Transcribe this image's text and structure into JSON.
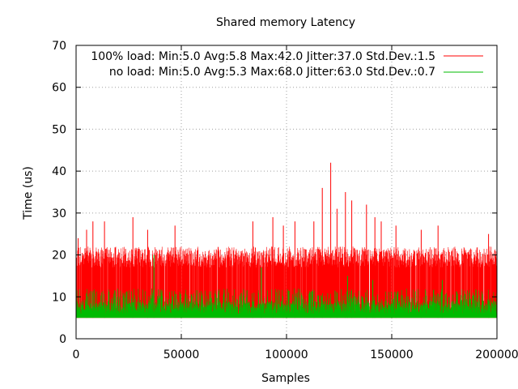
{
  "chart_data": {
    "type": "line",
    "title": "Shared memory Latency",
    "xlabel": "Samples",
    "ylabel": "Time (us)",
    "xlim": [
      0,
      200000
    ],
    "ylim": [
      0,
      70
    ],
    "x_ticks": [
      0,
      50000,
      100000,
      150000,
      200000
    ],
    "y_ticks": [
      0,
      10,
      20,
      30,
      40,
      50,
      60,
      70
    ],
    "grid": true,
    "legend_position": "top-right",
    "series": [
      {
        "name": "100% load: Min:5.0 Avg:5.8 Max:42.0 Jitter:37.0 Std.Dev.:1.5",
        "color": "#ff0000",
        "min": 5.0,
        "avg": 5.8,
        "max": 42.0,
        "typical_high": 22,
        "spikes": [
          {
            "x": 1000,
            "y": 24
          },
          {
            "x": 5000,
            "y": 26
          },
          {
            "x": 8000,
            "y": 28
          },
          {
            "x": 13500,
            "y": 28
          },
          {
            "x": 27000,
            "y": 29
          },
          {
            "x": 34000,
            "y": 26
          },
          {
            "x": 47000,
            "y": 27
          },
          {
            "x": 84000,
            "y": 28
          },
          {
            "x": 93500,
            "y": 29
          },
          {
            "x": 98500,
            "y": 27
          },
          {
            "x": 104000,
            "y": 28
          },
          {
            "x": 113000,
            "y": 28
          },
          {
            "x": 117000,
            "y": 36
          },
          {
            "x": 121000,
            "y": 42
          },
          {
            "x": 124000,
            "y": 31
          },
          {
            "x": 128000,
            "y": 35
          },
          {
            "x": 131000,
            "y": 33
          },
          {
            "x": 138000,
            "y": 32
          },
          {
            "x": 142000,
            "y": 29
          },
          {
            "x": 145000,
            "y": 28
          },
          {
            "x": 152000,
            "y": 27
          },
          {
            "x": 164000,
            "y": 26
          },
          {
            "x": 172000,
            "y": 27
          },
          {
            "x": 196000,
            "y": 25
          }
        ]
      },
      {
        "name": "no load: Min:5.0 Avg:5.3 Max:68.0 Jitter:63.0 Std.Dev.:0.7",
        "color": "#00bb00",
        "min": 5.0,
        "avg": 5.3,
        "max": 68.0,
        "typical_high": 12,
        "spikes": [
          {
            "x": 37000,
            "y": 20
          },
          {
            "x": 88000,
            "y": 17
          },
          {
            "x": 129000,
            "y": 15
          },
          {
            "x": 141000,
            "y": 14
          },
          {
            "x": 174000,
            "y": 14
          }
        ]
      }
    ]
  }
}
